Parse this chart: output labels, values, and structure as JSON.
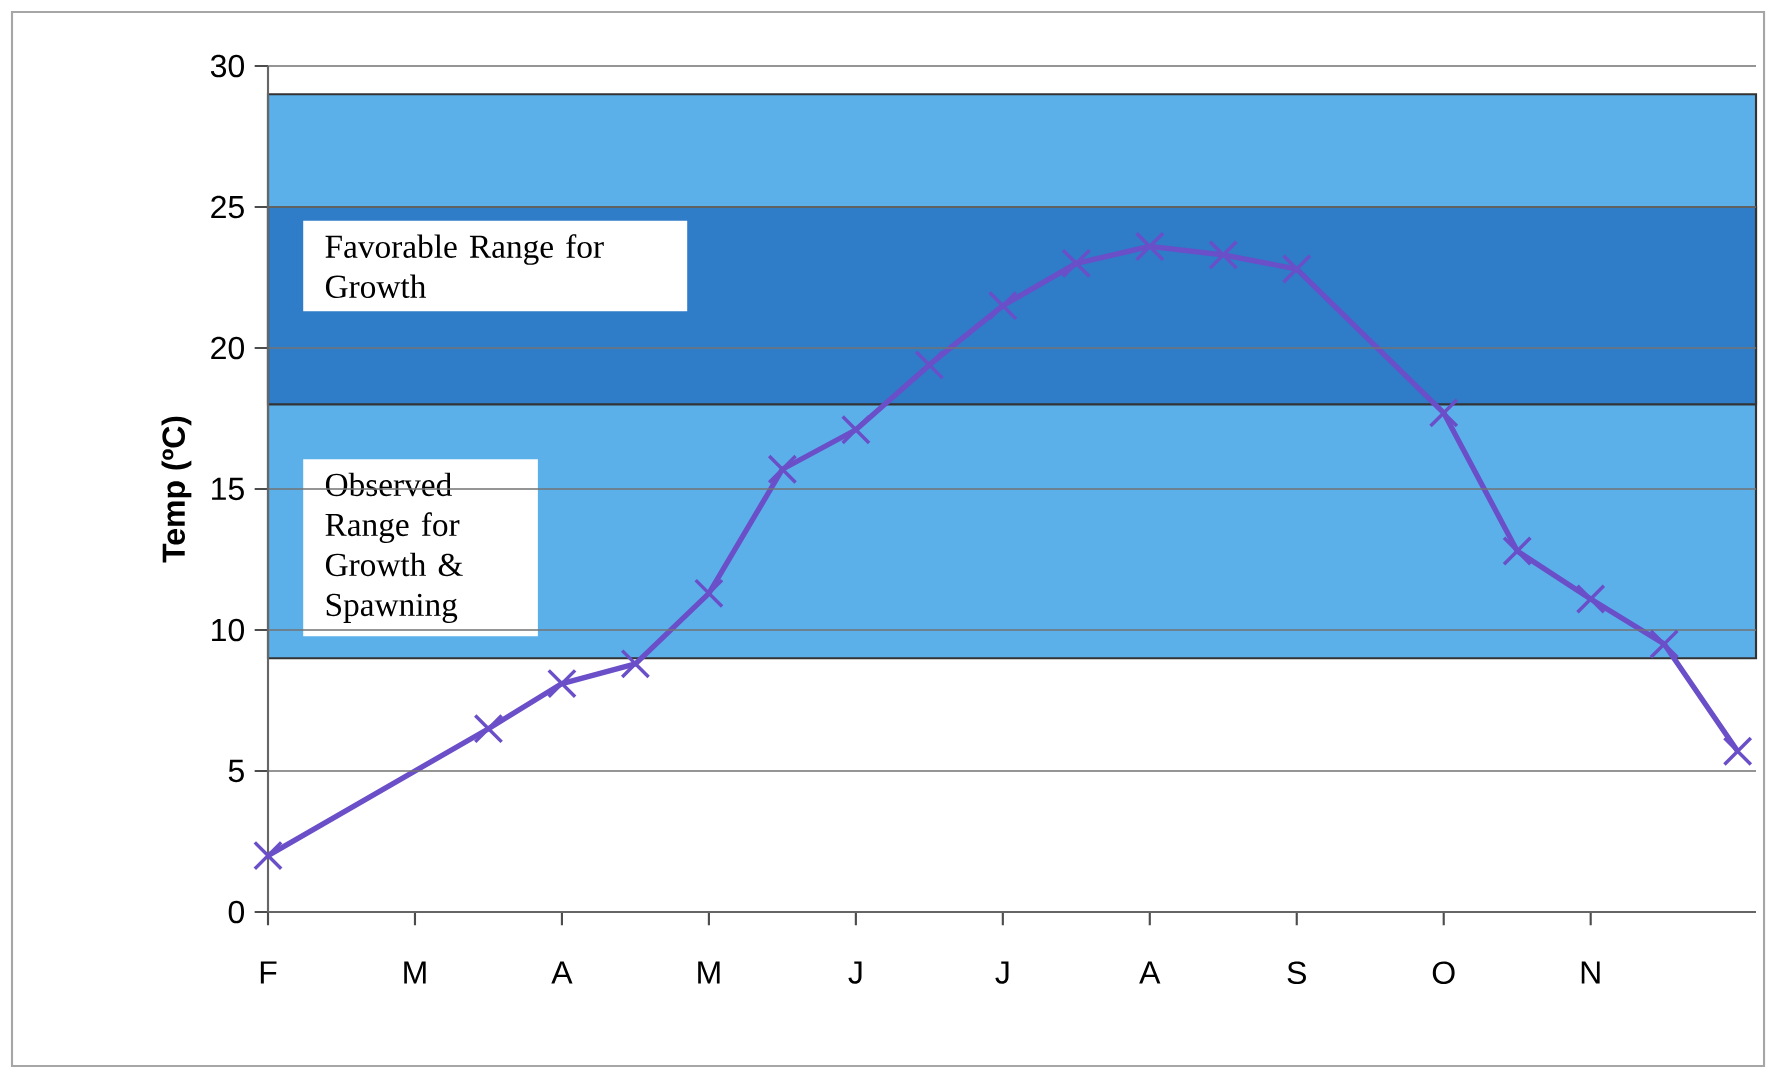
{
  "chart_data": {
    "type": "line",
    "ylabel": "Temp (ºC)",
    "categories": [
      "F",
      null,
      "M",
      null,
      "A",
      null,
      "M",
      null,
      "J",
      null,
      "J",
      null,
      "A",
      null,
      "S",
      null,
      "O",
      null,
      "N",
      null,
      null
    ],
    "series": [
      {
        "color": "#6a4fc8",
        "values": [
          2,
          null,
          null,
          6.5,
          8.1,
          8.8,
          11.3,
          15.7,
          17.1,
          19.4,
          21.5,
          23,
          23.6,
          23.3,
          22.8,
          null,
          17.7,
          12.8,
          11.1,
          9.5,
          5.7
        ]
      }
    ],
    "ylim": [
      0,
      30
    ],
    "yticks": [
      0,
      5,
      10,
      15,
      20,
      25,
      30
    ],
    "bands": [
      {
        "axis": "y",
        "from": 9,
        "to": 29,
        "label": "Observed Range for Growth & Spawning",
        "color": "#5cb0ea"
      },
      {
        "axis": "y",
        "from": 18,
        "to": 25,
        "label": "Favorable Range for Growth",
        "color": "#2f7cc8"
      }
    ],
    "grid": "y",
    "marker": "cross",
    "line_style": "solid"
  }
}
